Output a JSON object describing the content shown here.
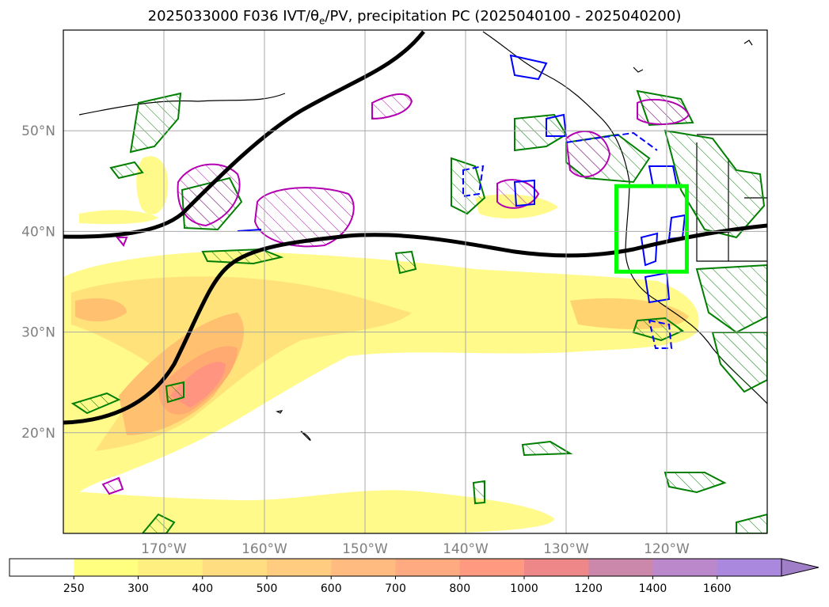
{
  "title": {
    "prefix": "2025033000 F036 IVT/",
    "theta_symbol": "θ",
    "theta_sub": "e",
    "suffix": "/PV, precipitation PC (2025040100 - 2025040200)"
  },
  "map": {
    "lon_range": [
      -180,
      -110
    ],
    "lat_range": [
      10,
      60
    ],
    "lat_ticks": [
      {
        "value": 50,
        "label": "50°N"
      },
      {
        "value": 40,
        "label": "40°N"
      },
      {
        "value": 30,
        "label": "30°N"
      },
      {
        "value": 20,
        "label": "20°N"
      }
    ],
    "lon_ticks": [
      {
        "value": -170,
        "label": "170°W"
      },
      {
        "value": -160,
        "label": "160°W"
      },
      {
        "value": -150,
        "label": "150°W"
      },
      {
        "value": -140,
        "label": "140°W"
      },
      {
        "value": -130,
        "label": "130°W"
      },
      {
        "value": -120,
        "label": "120°W"
      }
    ],
    "highlight_box": {
      "lon": [
        -125,
        -118
      ],
      "lat": [
        36,
        44.5
      ],
      "color": "#00ff00"
    }
  },
  "colorbar": {
    "labels": [
      "250",
      "300",
      "400",
      "500",
      "600",
      "700",
      "800",
      "1000",
      "1200",
      "1400",
      "1600"
    ],
    "colors": [
      "#ffffff",
      "#ffff80",
      "#ffee80",
      "#ffdd80",
      "#ffcc80",
      "#ffbb80",
      "#ffaa80",
      "#ff9980",
      "#ee8888",
      "#cc88aa",
      "#bb88cc",
      "#aa88dd"
    ]
  },
  "colors": {
    "ivt_fill": "#fff36b",
    "pv_contour": "#007f00",
    "theta_contour": "#b200b2",
    "blue_contour": "#0000ff",
    "jet_line": "#000000"
  }
}
